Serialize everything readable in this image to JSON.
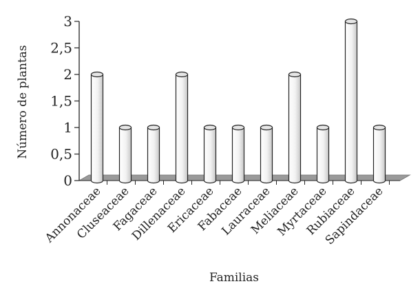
{
  "chart_data": {
    "type": "bar",
    "categories": [
      "Annonaceae",
      "Cluseaceae",
      "Fagaceae",
      "Dillenaceae",
      "Ericaceae",
      "Fabaceae",
      "Lauraceae",
      "Meliaceae",
      "Myrtaceae",
      "Rubiaceae",
      "Sapindaceae"
    ],
    "values": [
      2,
      1,
      1,
      2,
      1,
      1,
      1,
      2,
      1,
      3,
      1
    ],
    "xlabel": "Familias",
    "ylabel": "Número de plantas",
    "ylim": [
      0,
      3
    ],
    "yticks": [
      "0",
      "0,5",
      "1",
      "1,5",
      "2",
      "2,5",
      "3"
    ],
    "grid": false,
    "colors": {
      "bar_fill_light": "#ffffff",
      "bar_fill_dark": "#cfcfcf",
      "bar_stroke": "#222222",
      "floor": "#9a9a9a",
      "axis": "#222222"
    }
  }
}
